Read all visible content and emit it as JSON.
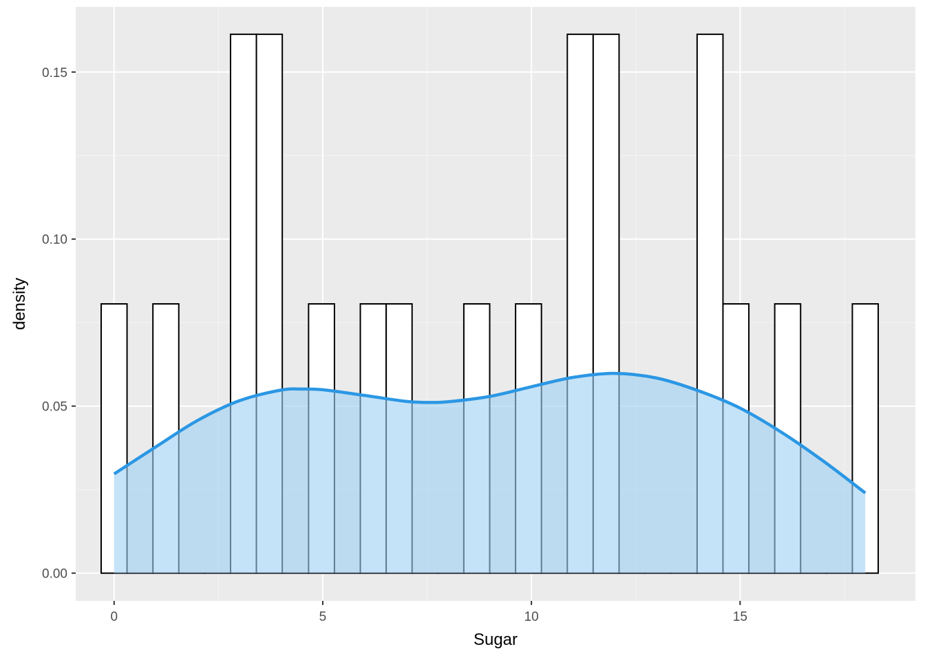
{
  "chart_data": {
    "type": "bar",
    "subtype": "histogram with density curve",
    "title": "",
    "xlabel": "Sugar",
    "ylabel": "density",
    "xlim": [
      -0.92,
      19.2
    ],
    "ylim": [
      -0.0083,
      0.1695
    ],
    "x_ticks": [
      0,
      5,
      10,
      15
    ],
    "x_tick_labels": [
      "0",
      "5",
      "10",
      "15"
    ],
    "y_ticks": [
      0.0,
      0.05,
      0.1,
      0.15
    ],
    "y_tick_labels": [
      "0.00",
      "0.05",
      "0.10",
      "0.15"
    ],
    "grid": true,
    "bin_width": 0.6207,
    "bins": [
      {
        "start": -0.31,
        "end": 0.31,
        "density": 0.0806
      },
      {
        "start": 0.31,
        "end": 0.93,
        "density": 0
      },
      {
        "start": 0.93,
        "end": 1.55,
        "density": 0.0806
      },
      {
        "start": 1.55,
        "end": 2.17,
        "density": 0
      },
      {
        "start": 2.17,
        "end": 2.79,
        "density": 0
      },
      {
        "start": 2.79,
        "end": 3.41,
        "density": 0.1613
      },
      {
        "start": 3.41,
        "end": 4.03,
        "density": 0.1613
      },
      {
        "start": 4.03,
        "end": 4.66,
        "density": 0
      },
      {
        "start": 4.66,
        "end": 5.28,
        "density": 0.0806
      },
      {
        "start": 5.28,
        "end": 5.9,
        "density": 0
      },
      {
        "start": 5.9,
        "end": 6.52,
        "density": 0.0806
      },
      {
        "start": 6.52,
        "end": 7.14,
        "density": 0.0806
      },
      {
        "start": 7.14,
        "end": 7.76,
        "density": 0
      },
      {
        "start": 7.76,
        "end": 8.38,
        "density": 0
      },
      {
        "start": 8.38,
        "end": 9.0,
        "density": 0.0806
      },
      {
        "start": 9.0,
        "end": 9.62,
        "density": 0
      },
      {
        "start": 9.62,
        "end": 10.24,
        "density": 0.0806
      },
      {
        "start": 10.24,
        "end": 10.86,
        "density": 0
      },
      {
        "start": 10.86,
        "end": 11.48,
        "density": 0.1613
      },
      {
        "start": 11.48,
        "end": 12.1,
        "density": 0.1613
      },
      {
        "start": 12.1,
        "end": 12.72,
        "density": 0
      },
      {
        "start": 12.72,
        "end": 13.34,
        "density": 0
      },
      {
        "start": 13.34,
        "end": 13.97,
        "density": 0
      },
      {
        "start": 13.97,
        "end": 14.59,
        "density": 0.1613
      },
      {
        "start": 14.59,
        "end": 15.21,
        "density": 0.0806
      },
      {
        "start": 15.21,
        "end": 15.83,
        "density": 0
      },
      {
        "start": 15.83,
        "end": 16.45,
        "density": 0.0806
      },
      {
        "start": 16.45,
        "end": 17.07,
        "density": 0
      },
      {
        "start": 17.07,
        "end": 17.69,
        "density": 0
      },
      {
        "start": 17.69,
        "end": 18.31,
        "density": 0.0806
      }
    ],
    "density_curve": {
      "x": [
        0,
        1,
        2,
        3,
        4,
        4.5,
        5,
        6,
        7,
        7.5,
        8,
        9,
        10,
        11,
        12,
        13,
        14,
        15,
        16,
        17,
        18
      ],
      "y": [
        0.0297,
        0.0378,
        0.0457,
        0.0516,
        0.0548,
        0.0551,
        0.0549,
        0.0532,
        0.0514,
        0.0511,
        0.0513,
        0.0529,
        0.0558,
        0.0586,
        0.0598,
        0.0584,
        0.0546,
        0.0494,
        0.0421,
        0.0335,
        0.024
      ]
    },
    "colors": {
      "panel_background": "#ebebeb",
      "grid_major": "#ffffff",
      "grid_minor": "#f5f5f5",
      "bar_fill": "#ffffff",
      "bar_outline": "#000000",
      "density_line": "#2b97e4",
      "density_fill": "#9fd0f4"
    }
  }
}
